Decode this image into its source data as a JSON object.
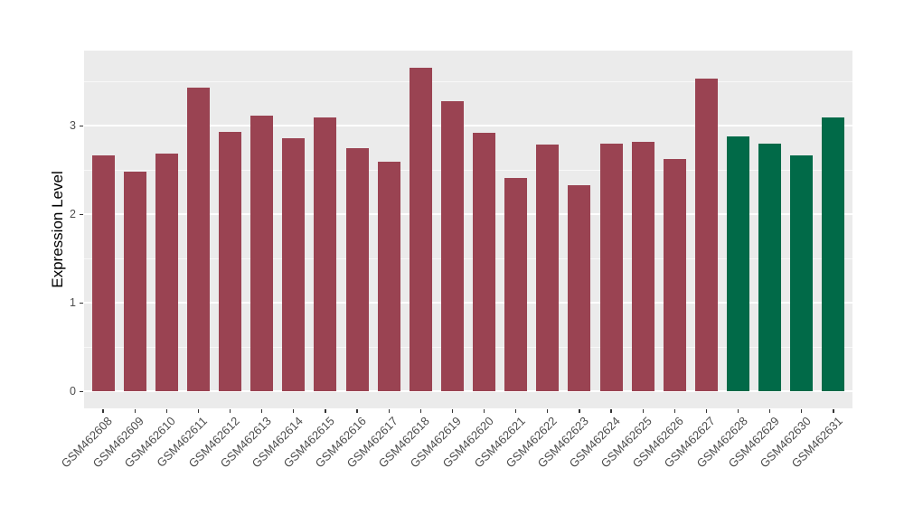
{
  "chart_data": {
    "type": "bar",
    "title": "",
    "xlabel": "",
    "ylabel": "Expression Level",
    "categories": [
      "GSM462608",
      "GSM462609",
      "GSM462610",
      "GSM462611",
      "GSM462612",
      "GSM462613",
      "GSM462614",
      "GSM462615",
      "GSM462616",
      "GSM462617",
      "GSM462618",
      "GSM462619",
      "GSM462620",
      "GSM462621",
      "GSM462622",
      "GSM462623",
      "GSM462624",
      "GSM462625",
      "GSM462626",
      "GSM462627",
      "GSM462628",
      "GSM462629",
      "GSM462630",
      "GSM462631"
    ],
    "values": [
      2.67,
      2.48,
      2.69,
      3.43,
      2.93,
      3.12,
      2.86,
      3.09,
      2.75,
      2.6,
      3.66,
      3.28,
      2.92,
      2.41,
      2.79,
      2.33,
      2.8,
      2.82,
      2.63,
      3.53,
      2.88,
      2.8,
      2.67,
      3.09
    ],
    "bar_color": "#9A4352",
    "highlight_color": "#016A48",
    "highlight_categories": [
      "GSM462628",
      "GSM462629",
      "GSM462630",
      "GSM462631"
    ],
    "yticks": [
      0,
      1,
      2,
      3
    ],
    "minor_yticks": [
      0.5,
      1.5,
      2.5,
      3.5
    ],
    "ylim": [
      -0.19,
      3.85
    ],
    "grid": true,
    "legend": "none",
    "panel_background": "#EBEBEB",
    "grid_color": "#FFFFFF",
    "axis_text_color": "#4D4D4D",
    "tick_mark_color": "#333333"
  }
}
